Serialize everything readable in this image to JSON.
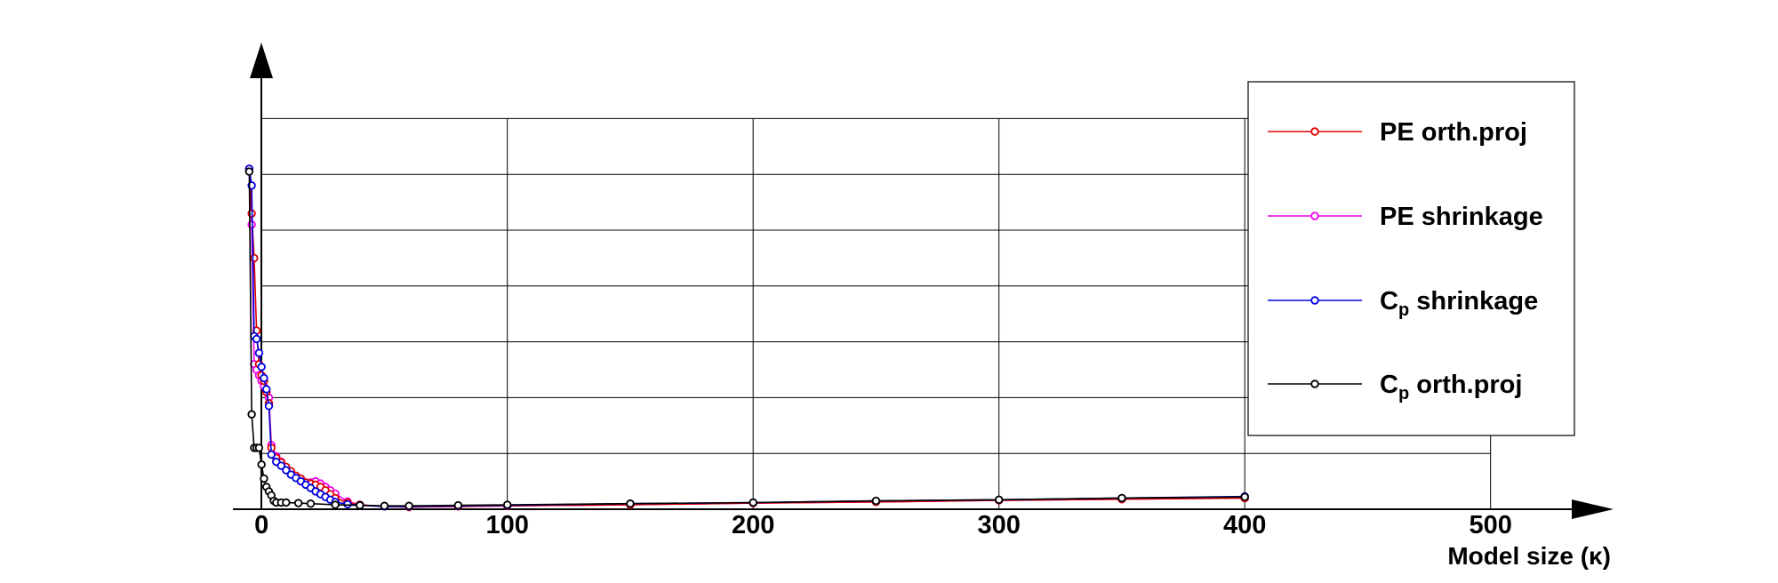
{
  "chart_data": {
    "type": "line",
    "title": "",
    "xlabel": "Model size (κ)",
    "ylabel": "",
    "xlim": [
      -12,
      546
    ],
    "ylim": [
      0,
      8.8
    ],
    "grid": true,
    "y_tick_labels_shown": false,
    "x_ticks": [
      0,
      100,
      200,
      300,
      400,
      500
    ],
    "x_tick_labels": [
      "0",
      "100",
      "200",
      "300",
      "400",
      "500"
    ],
    "y_gridlines": [
      1,
      2,
      3,
      4,
      5,
      6,
      7
    ],
    "legend_position": "top-right",
    "series": [
      {
        "name": "PE orth.proj",
        "legend_main": "PE orth.proj",
        "legend_sub": "",
        "legend_after": "",
        "color": "#e00000",
        "x": [
          -5,
          -4,
          -3,
          -2,
          -1,
          0,
          1,
          2,
          3,
          4,
          6,
          8,
          10,
          12,
          14,
          16,
          18,
          20,
          22,
          24,
          26,
          28,
          30,
          35,
          40,
          50,
          60,
          80,
          100,
          150,
          200,
          250,
          300,
          350,
          400
        ],
        "y": [
          6.1,
          5.3,
          4.5,
          3.2,
          2.6,
          2.4,
          2.3,
          2.1,
          1.9,
          1.1,
          0.92,
          0.84,
          0.76,
          0.68,
          0.6,
          0.55,
          0.48,
          0.46,
          0.44,
          0.4,
          0.34,
          0.27,
          0.2,
          0.12,
          0.08,
          0.05,
          0.04,
          0.05,
          0.06,
          0.08,
          0.11,
          0.13,
          0.16,
          0.18,
          0.2
        ]
      },
      {
        "name": "PE shrinkage",
        "legend_main": "PE shrinkage",
        "legend_sub": "",
        "legend_after": "",
        "color": "#ee00ee",
        "x": [
          -5,
          -4,
          -3,
          -2,
          -1,
          0,
          1,
          2,
          3,
          4,
          6,
          8,
          10,
          12,
          14,
          16,
          18,
          20,
          22,
          24,
          26,
          28,
          30,
          35,
          40,
          50,
          60,
          80,
          100,
          150,
          200,
          250,
          300,
          350,
          400
        ],
        "y": [
          6.1,
          5.1,
          2.6,
          2.5,
          2.4,
          2.3,
          2.2,
          2.1,
          2.0,
          1.15,
          0.95,
          0.85,
          0.75,
          0.65,
          0.58,
          0.5,
          0.46,
          0.48,
          0.5,
          0.46,
          0.4,
          0.34,
          0.28,
          0.14,
          0.08,
          0.05,
          0.04,
          0.05,
          0.06,
          0.08,
          0.11,
          0.13,
          0.16,
          0.18,
          0.2
        ]
      },
      {
        "name": "C_p shrinkage",
        "legend_main": "C",
        "legend_sub": "p",
        "legend_after": " shrinkage",
        "color": "#0000e0",
        "x": [
          -5,
          -4,
          -3,
          -2,
          -1,
          0,
          1,
          2,
          3,
          4,
          6,
          8,
          10,
          12,
          14,
          16,
          18,
          20,
          22,
          24,
          26,
          28,
          30,
          35,
          40,
          50,
          60,
          80,
          100,
          150,
          200,
          250,
          300,
          350,
          400
        ],
        "y": [
          6.1,
          5.8,
          3.1,
          3.05,
          2.8,
          2.55,
          2.35,
          2.15,
          1.85,
          0.98,
          0.85,
          0.78,
          0.7,
          0.62,
          0.56,
          0.5,
          0.44,
          0.38,
          0.32,
          0.27,
          0.22,
          0.17,
          0.13,
          0.09,
          0.07,
          0.05,
          0.05,
          0.06,
          0.07,
          0.1,
          0.12,
          0.15,
          0.17,
          0.2,
          0.23
        ]
      },
      {
        "name": "C_p orth.proj",
        "legend_main": "C",
        "legend_sub": "p",
        "legend_after": " orth.proj",
        "color": "#000000",
        "x": [
          -5,
          -4,
          -3,
          -2,
          -1,
          0,
          1,
          2,
          3,
          4,
          5,
          6,
          8,
          10,
          15,
          20,
          30,
          40,
          50,
          60,
          80,
          100,
          150,
          200,
          250,
          300,
          350,
          400
        ],
        "y": [
          6.05,
          1.7,
          1.1,
          1.1,
          1.1,
          0.8,
          0.55,
          0.4,
          0.32,
          0.25,
          0.15,
          0.12,
          0.12,
          0.12,
          0.11,
          0.1,
          0.08,
          0.07,
          0.06,
          0.06,
          0.07,
          0.08,
          0.1,
          0.12,
          0.15,
          0.17,
          0.2,
          0.22
        ]
      }
    ]
  }
}
